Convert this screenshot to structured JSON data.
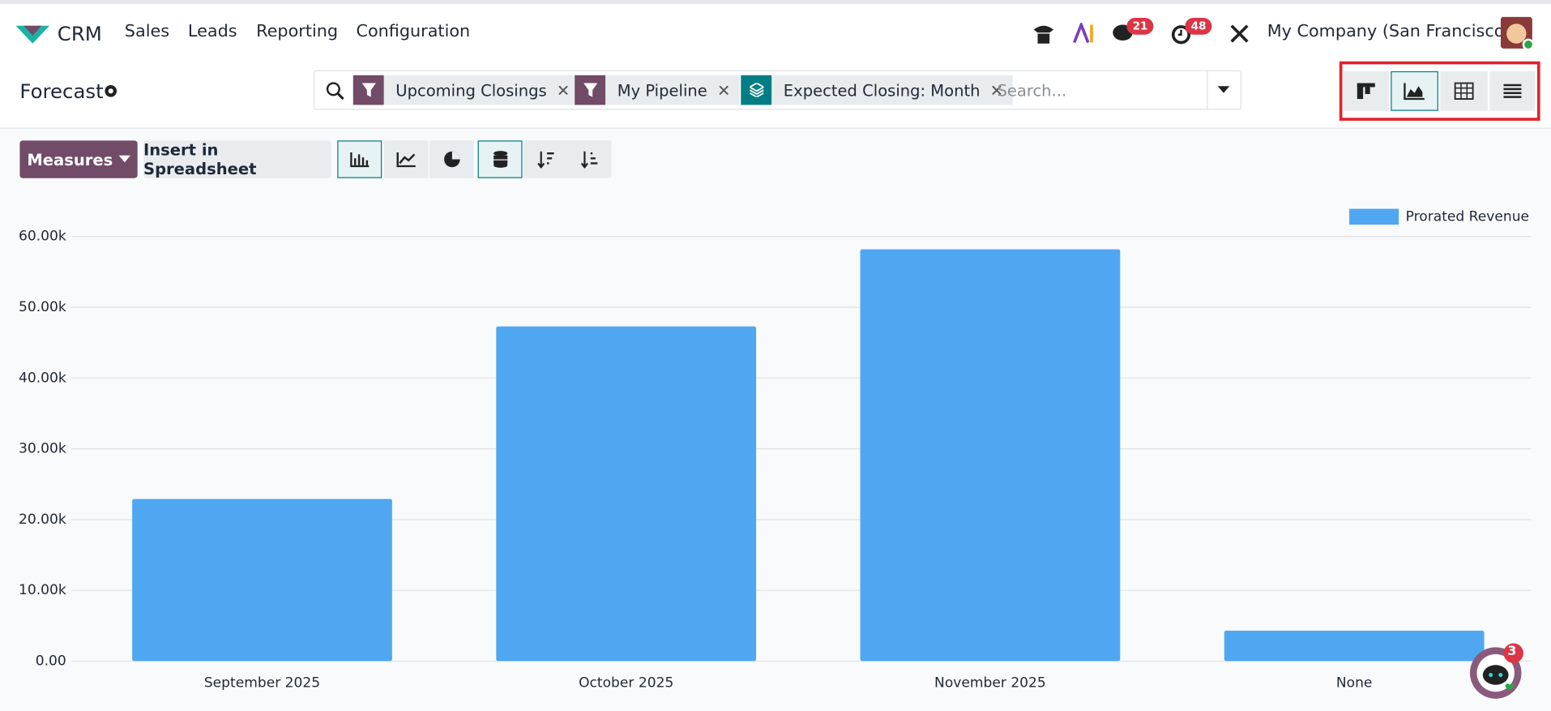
{
  "nav": {
    "app": "CRM",
    "menu": [
      "Sales",
      "Leads",
      "Reporting",
      "Configuration"
    ],
    "messages_badge": 21,
    "activities_badge": 48,
    "company": "My Company (San Francisco)"
  },
  "control_panel": {
    "title": "Forecast",
    "facets": [
      "Upcoming Closings",
      "My Pipeline",
      "Expected Closing: Month"
    ],
    "search_placeholder": "Search..."
  },
  "toolbar": {
    "measures": "Measures",
    "insert": "Insert in Spreadsheet"
  },
  "chat_badge": 3,
  "chart_data": {
    "type": "bar",
    "categories": [
      "September 2025",
      "October 2025",
      "November 2025",
      "None"
    ],
    "series": [
      {
        "name": "Prorated Revenue",
        "color": "#4fa7f2",
        "values": [
          22900,
          47300,
          58200,
          4300
        ]
      }
    ],
    "ylim": [
      0,
      60000
    ],
    "yticks": [
      {
        "value": 0,
        "label": "0.00"
      },
      {
        "value": 10000,
        "label": "10.00k"
      },
      {
        "value": 20000,
        "label": "20.00k"
      },
      {
        "value": 30000,
        "label": "30.00k"
      },
      {
        "value": 40000,
        "label": "40.00k"
      },
      {
        "value": 50000,
        "label": "50.00k"
      },
      {
        "value": 60000,
        "label": "60.00k"
      }
    ],
    "grid": true,
    "legend": "top-right"
  }
}
